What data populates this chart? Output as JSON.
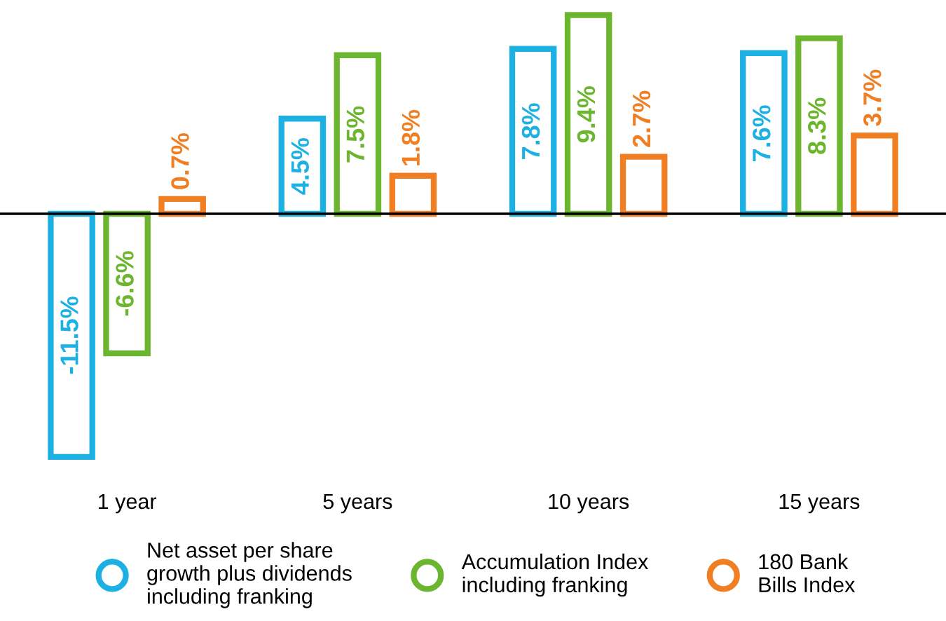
{
  "chart_data": {
    "type": "bar",
    "categories": [
      "1 year",
      "5 years",
      "10 years",
      "15 years"
    ],
    "series": [
      {
        "name": "Net asset per share\ngrowth plus dividends\nincluding franking",
        "color": "#1cb1e2",
        "values": [
          -11.5,
          4.5,
          7.8,
          7.6
        ],
        "value_labels": [
          "-11.5%",
          "4.5%",
          "7.8%",
          "7.6%"
        ]
      },
      {
        "name": "Accumulation Index\nincluding franking",
        "color": "#6cb52e",
        "values": [
          -6.6,
          7.5,
          9.4,
          8.3
        ],
        "value_labels": [
          "-6.6%",
          "7.5%",
          "9.4%",
          "8.3%"
        ]
      },
      {
        "name": "180 Bank\nBills Index",
        "color": "#f07e22",
        "values": [
          0.7,
          1.8,
          2.7,
          3.7
        ],
        "value_labels": [
          "0.7%",
          "1.8%",
          "2.7%",
          "3.7%"
        ]
      }
    ],
    "legend": "bottom",
    "marker": "circle"
  }
}
